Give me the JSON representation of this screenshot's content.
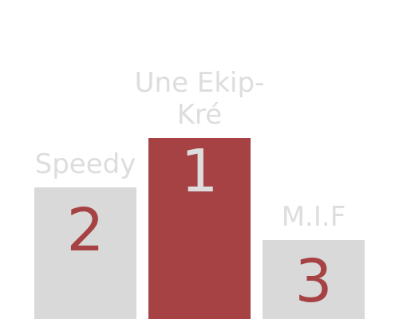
{
  "podium": {
    "entries": [
      {
        "rank": "1",
        "name": "Une Ekip-Kré"
      },
      {
        "rank": "2",
        "name": "Speedy"
      },
      {
        "rank": "3",
        "name": "M.I.F"
      }
    ]
  },
  "colors": {
    "accent": "#a64244",
    "block_gray": "#d9d9d9",
    "label_gray": "#dddddd",
    "background": "#ffffff"
  }
}
